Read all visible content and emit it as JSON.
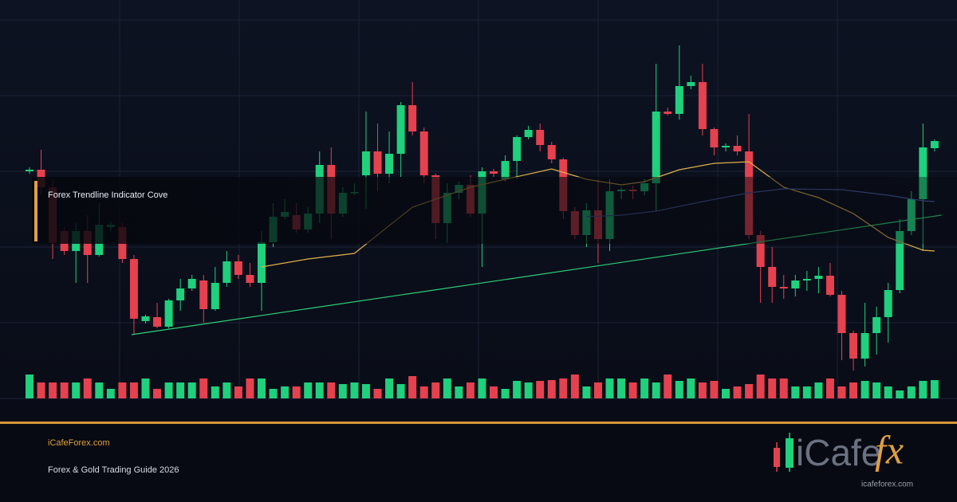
{
  "chart_data": {
    "type": "candlestick",
    "annotation": "Forex Trendline Indicator Cove",
    "up_color": "#1fd07c",
    "down_color": "#e5414f",
    "grid": true,
    "ylim": [
      0,
      500
    ],
    "yticks": [
      0,
      95,
      190,
      285,
      380,
      475
    ],
    "volume_ylim": [
      0,
      40
    ],
    "open": [
      285,
      287,
      265,
      210,
      185,
      210,
      180,
      215,
      215,
      175,
      97,
      102,
      90,
      123,
      138,
      148,
      112,
      145,
      172,
      155,
      145,
      196,
      228,
      230,
      212,
      232,
      293,
      232,
      258,
      280,
      310,
      282,
      307,
      368,
      335,
      280,
      220,
      258,
      268,
      232,
      285,
      275,
      298,
      328,
      337,
      318,
      300,
      235,
      205,
      236,
      200,
      260,
      262,
      260,
      270,
      360,
      357,
      392,
      397,
      338,
      315,
      317,
      310,
      205,
      165,
      140,
      138,
      148,
      150,
      154,
      130,
      82,
      50,
      82,
      102,
      136,
      210,
      250,
      314
    ],
    "high": [
      290,
      312,
      275,
      215,
      220,
      230,
      245,
      222,
      220,
      180,
      105,
      120,
      125,
      150,
      155,
      155,
      165,
      185,
      180,
      170,
      210,
      245,
      250,
      245,
      240,
      310,
      315,
      265,
      270,
      360,
      345,
      335,
      372,
      397,
      340,
      282,
      270,
      272,
      280,
      290,
      288,
      305,
      330,
      342,
      345,
      322,
      302,
      240,
      245,
      275,
      275,
      265,
      267,
      275,
      420,
      365,
      443,
      405,
      420,
      340,
      320,
      330,
      357,
      210,
      190,
      155,
      155,
      160,
      165,
      170,
      135,
      85,
      120,
      115,
      145,
      225,
      260,
      345,
      325
    ],
    "low": [
      282,
      255,
      175,
      180,
      145,
      145,
      178,
      210,
      170,
      80,
      94,
      88,
      88,
      110,
      135,
      95,
      110,
      140,
      150,
      140,
      110,
      190,
      225,
      208,
      208,
      220,
      200,
      228,
      255,
      238,
      260,
      270,
      278,
      330,
      270,
      200,
      195,
      250,
      228,
      165,
      278,
      272,
      275,
      325,
      310,
      295,
      225,
      200,
      190,
      170,
      185,
      250,
      250,
      255,
      235,
      355,
      350,
      388,
      330,
      305,
      310,
      305,
      200,
      120,
      120,
      125,
      128,
      135,
      132,
      128,
      48,
      35,
      40,
      55,
      70,
      132,
      205,
      185,
      310
    ],
    "close": [
      287,
      265,
      195,
      185,
      210,
      180,
      218,
      218,
      175,
      100,
      103,
      90,
      123,
      138,
      150,
      112,
      145,
      172,
      155,
      145,
      196,
      228,
      234,
      212,
      232,
      293,
      232,
      258,
      259,
      310,
      282,
      307,
      368,
      335,
      280,
      220,
      258,
      268,
      232,
      285,
      282,
      298,
      328,
      337,
      318,
      300,
      235,
      205,
      236,
      200,
      260,
      262,
      260,
      270,
      360,
      357,
      392,
      397,
      338,
      315,
      317,
      310,
      205,
      165,
      140,
      138,
      148,
      150,
      154,
      130,
      82,
      50,
      82,
      102,
      136,
      210,
      250,
      315,
      323
    ],
    "volume": [
      30,
      20,
      20,
      20,
      20,
      25,
      20,
      12,
      20,
      20,
      25,
      12,
      20,
      20,
      20,
      25,
      15,
      20,
      15,
      25,
      25,
      12,
      15,
      15,
      20,
      20,
      20,
      18,
      20,
      18,
      12,
      25,
      18,
      28,
      15,
      20,
      25,
      15,
      20,
      25,
      15,
      12,
      22,
      20,
      22,
      23,
      25,
      30,
      15,
      20,
      25,
      25,
      20,
      25,
      20,
      30,
      22,
      25,
      20,
      22,
      12,
      15,
      18,
      30,
      25,
      25,
      15,
      15,
      20,
      25,
      15,
      20,
      22,
      20,
      15,
      10,
      15,
      22,
      23
    ],
    "lines": [
      {
        "color": "#2fd07a",
        "x": [
          8.8,
          78.6
        ],
        "values": [
          80,
          230
        ]
      },
      {
        "color": "#e2b04a",
        "x": [
          20,
          24,
          28,
          33,
          38,
          41,
          45,
          48,
          51,
          53,
          56,
          59,
          62,
          65,
          68,
          71,
          74,
          77,
          78
        ],
        "values": [
          165,
          175,
          182,
          240,
          265,
          275,
          288,
          275,
          268,
          272,
          287,
          295,
          297,
          265,
          252,
          232,
          202,
          186,
          185
        ]
      },
      {
        "color": "#4a5c9e",
        "x": [
          48,
          51,
          54,
          58,
          62,
          65,
          70,
          74,
          77,
          78
        ],
        "values": [
          228,
          230,
          235,
          247,
          258,
          263,
          262,
          255,
          248,
          247
        ]
      }
    ]
  },
  "footer": {
    "site": "iCafeForex.com",
    "subtitle": "Forex & Gold Trading Guide 2026"
  },
  "logo": {
    "brand": "iCafe",
    "mark": "fx",
    "url": "icafeforex.com"
  }
}
